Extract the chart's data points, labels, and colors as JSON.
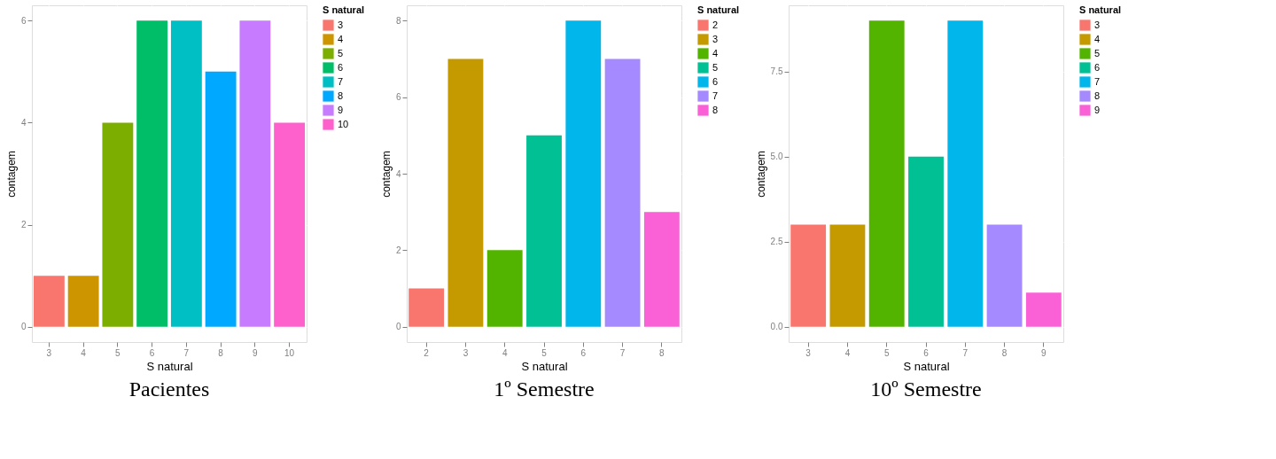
{
  "chart_data": [
    {
      "type": "bar",
      "title": "Pacientes",
      "xlabel": "S natural",
      "ylabel": "contagem",
      "legend_title": "S natural",
      "categories": [
        "3",
        "4",
        "5",
        "6",
        "7",
        "8",
        "9",
        "10"
      ],
      "series": [
        {
          "name": "3",
          "color": "#f8766d",
          "values": [
            1,
            null,
            null,
            null,
            null,
            null,
            null,
            null
          ]
        },
        {
          "name": "4",
          "color": "#cd9600",
          "values": [
            null,
            1,
            null,
            null,
            null,
            null,
            null,
            null
          ]
        },
        {
          "name": "5",
          "color": "#7cae00",
          "values": [
            null,
            null,
            4,
            null,
            null,
            null,
            null,
            null
          ]
        },
        {
          "name": "6",
          "color": "#00be67",
          "values": [
            null,
            null,
            null,
            6,
            null,
            null,
            null,
            null
          ]
        },
        {
          "name": "7",
          "color": "#00bfc4",
          "values": [
            null,
            null,
            null,
            null,
            6,
            null,
            null,
            null
          ]
        },
        {
          "name": "8",
          "color": "#00a9ff",
          "values": [
            null,
            null,
            null,
            null,
            null,
            5,
            null,
            null
          ]
        },
        {
          "name": "9",
          "color": "#c77cff",
          "values": [
            null,
            null,
            null,
            null,
            null,
            null,
            6,
            null
          ]
        },
        {
          "name": "10",
          "color": "#ff61cc",
          "values": [
            null,
            null,
            null,
            null,
            null,
            null,
            null,
            4
          ]
        }
      ],
      "ylim": [
        -0.3,
        6.3
      ],
      "yticks": [
        0,
        2,
        4,
        6
      ],
      "grid": true,
      "legend": "right"
    },
    {
      "type": "bar",
      "title": "1º Semestre",
      "xlabel": "S natural",
      "ylabel": "contagem",
      "legend_title": "S natural",
      "categories": [
        "2",
        "3",
        "4",
        "5",
        "6",
        "7",
        "8"
      ],
      "series": [
        {
          "name": "2",
          "color": "#f8766d",
          "values": [
            1,
            null,
            null,
            null,
            null,
            null,
            null
          ]
        },
        {
          "name": "3",
          "color": "#c49a00",
          "values": [
            null,
            7,
            null,
            null,
            null,
            null,
            null
          ]
        },
        {
          "name": "4",
          "color": "#53b400",
          "values": [
            null,
            null,
            2,
            null,
            null,
            null,
            null
          ]
        },
        {
          "name": "5",
          "color": "#00c094",
          "values": [
            null,
            null,
            null,
            5,
            null,
            null,
            null
          ]
        },
        {
          "name": "6",
          "color": "#00b6eb",
          "values": [
            null,
            null,
            null,
            null,
            8,
            null,
            null
          ]
        },
        {
          "name": "7",
          "color": "#a58aff",
          "values": [
            null,
            null,
            null,
            null,
            null,
            7,
            null
          ]
        },
        {
          "name": "8",
          "color": "#fb61d7",
          "values": [
            null,
            null,
            null,
            null,
            null,
            null,
            3
          ]
        }
      ],
      "ylim": [
        -0.4,
        8.4
      ],
      "yticks": [
        0,
        2,
        4,
        6,
        8
      ],
      "grid": true,
      "legend": "right"
    },
    {
      "type": "bar",
      "title": "10º Semestre",
      "xlabel": "S natural",
      "ylabel": "contagem",
      "legend_title": "S natural",
      "categories": [
        "3",
        "4",
        "5",
        "6",
        "7",
        "8",
        "9"
      ],
      "series": [
        {
          "name": "3",
          "color": "#f8766d",
          "values": [
            3,
            null,
            null,
            null,
            null,
            null,
            null
          ]
        },
        {
          "name": "4",
          "color": "#c49a00",
          "values": [
            null,
            3,
            null,
            null,
            null,
            null,
            null
          ]
        },
        {
          "name": "5",
          "color": "#53b400",
          "values": [
            null,
            null,
            9,
            null,
            null,
            null,
            null
          ]
        },
        {
          "name": "6",
          "color": "#00c094",
          "values": [
            null,
            null,
            null,
            5,
            null,
            null,
            null
          ]
        },
        {
          "name": "7",
          "color": "#00b6eb",
          "values": [
            null,
            null,
            null,
            null,
            9,
            null,
            null
          ]
        },
        {
          "name": "8",
          "color": "#a58aff",
          "values": [
            null,
            null,
            null,
            null,
            null,
            3,
            null
          ]
        },
        {
          "name": "9",
          "color": "#fb61d7",
          "values": [
            null,
            null,
            null,
            null,
            null,
            null,
            1
          ]
        }
      ],
      "ylim": [
        -0.45,
        9.45
      ],
      "yticks": [
        {
          "value": 0,
          "label": "0.0"
        },
        2.5,
        {
          "value": 5,
          "label": "5.0"
        },
        7.5
      ],
      "grid": true,
      "legend": "right"
    }
  ]
}
